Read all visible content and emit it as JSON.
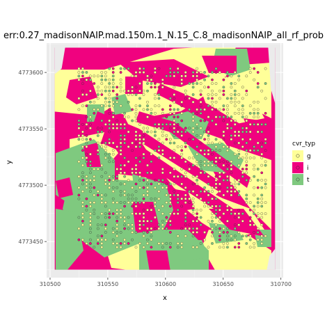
{
  "chart_data": {
    "type": "scatter",
    "title": "err:0.27_madisonNAIP.mad.150m.1_N.15_C.8_madisonNAIP_all_rf_prob",
    "xlabel": "x",
    "ylabel": "y",
    "xlim": [
      310497,
      310702
    ],
    "ylim": [
      4773418,
      4773626
    ],
    "x_ticks": [
      310500,
      310550,
      310600,
      310650,
      310700
    ],
    "x_tick_labels": [
      "310500",
      "310550",
      "310600",
      "310650",
      "310700"
    ],
    "y_ticks": [
      4773450,
      4773500,
      4773550,
      4773600
    ],
    "y_tick_labels": [
      "4773450",
      "4773500",
      "4773550",
      "4773600"
    ],
    "grid": true,
    "legend": {
      "title": "cvr_typ",
      "position": "right",
      "entries": [
        {
          "label": "g",
          "color": "#ffff99"
        },
        {
          "label": "i",
          "color": "#f0027f"
        },
        {
          "label": "t",
          "color": "#7fc97f"
        }
      ]
    },
    "raster_extent": {
      "x": [
        310504,
        310695
      ],
      "y": [
        4773425,
        4773622
      ]
    },
    "background_class": "i"
  }
}
